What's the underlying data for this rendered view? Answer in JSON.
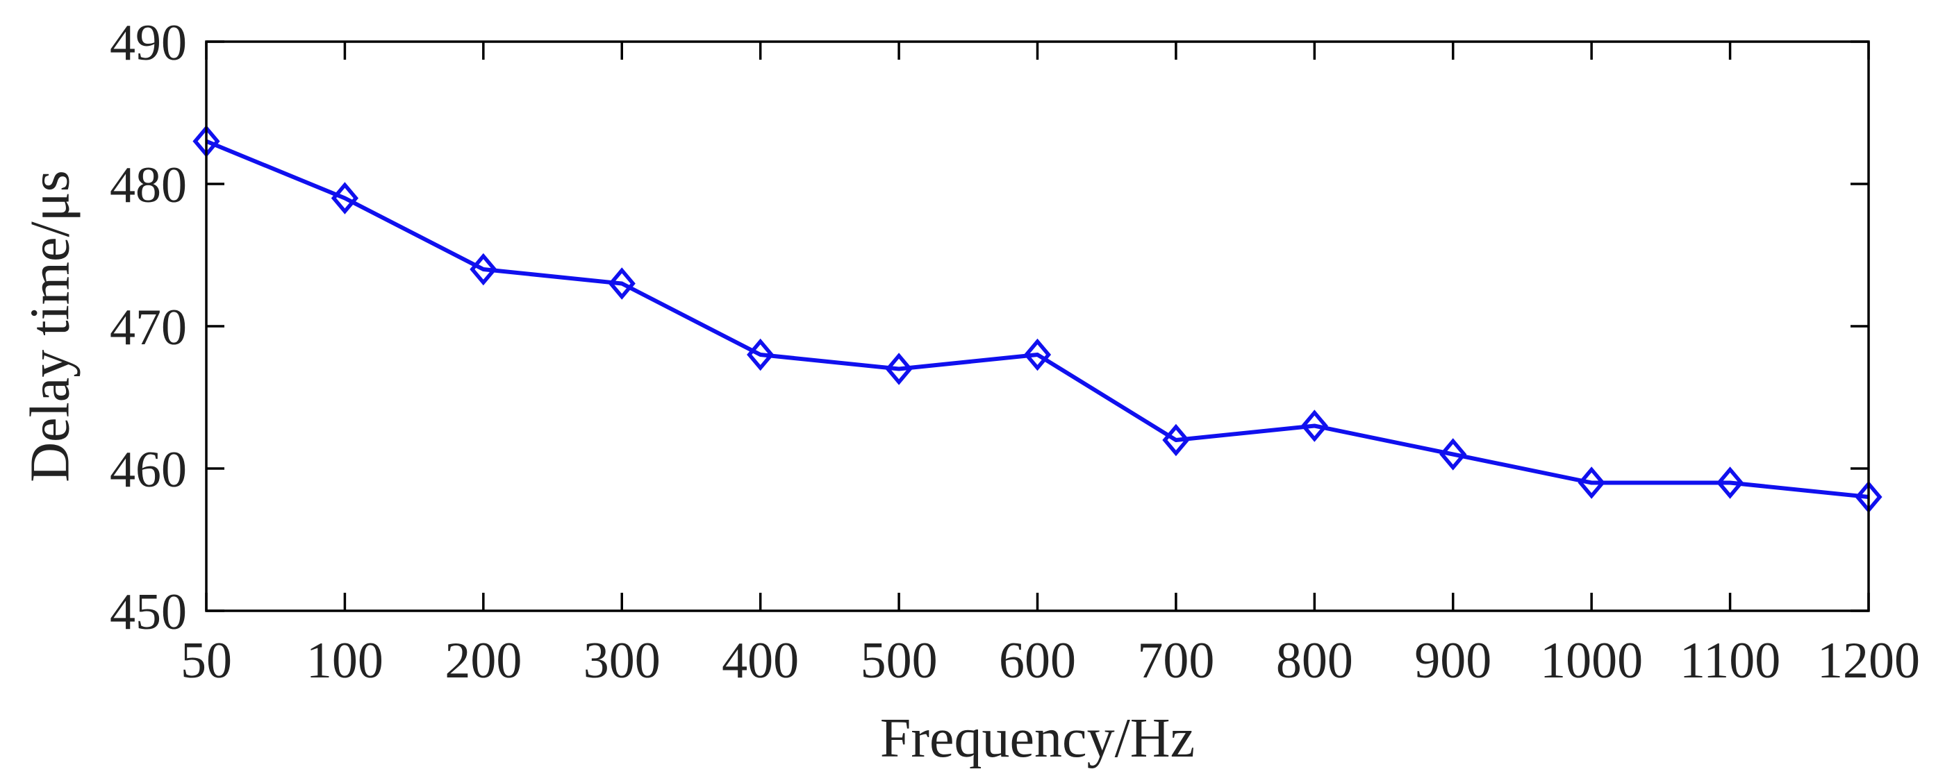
{
  "chart_data": {
    "type": "line",
    "title": "",
    "xlabel": "Frequency/Hz",
    "ylabel": "Delay time/μs",
    "categories": [
      "50",
      "100",
      "200",
      "300",
      "400",
      "500",
      "600",
      "700",
      "800",
      "900",
      "1000",
      "1100",
      "1200"
    ],
    "series": [
      {
        "values": [
          483,
          479,
          474,
          473,
          468,
          467,
          468,
          462,
          463,
          461,
          459,
          459,
          458
        ],
        "color": "#1010EE",
        "marker": "diamond"
      }
    ],
    "ylim": [
      450,
      490
    ],
    "yticks": [
      450,
      460,
      470,
      480,
      490
    ],
    "grid": false,
    "legend": "none"
  }
}
